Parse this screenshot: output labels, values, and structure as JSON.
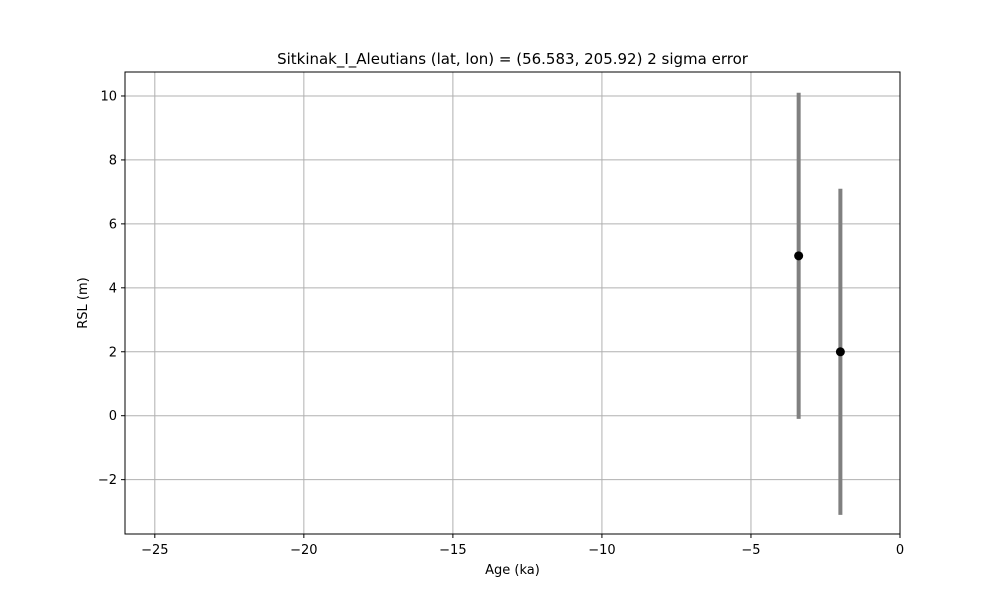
{
  "chart_data": {
    "type": "scatter",
    "title": "Sitkinak_I_Aleutians (lat, lon) = (56.583, 205.92)  2 sigma error",
    "xlabel": "Age (ka)",
    "ylabel": "RSL (m)",
    "xlim": [
      -26,
      0
    ],
    "ylim": [
      -3.7,
      10.75
    ],
    "grid": true,
    "x_ticks": [
      -25,
      -20,
      -15,
      -10,
      -5,
      0
    ],
    "x_tick_labels": [
      "−25",
      "−20",
      "−15",
      "−10",
      "−5",
      "0"
    ],
    "y_ticks": [
      -2,
      0,
      2,
      4,
      6,
      8,
      10
    ],
    "y_tick_labels": [
      "−2",
      "0",
      "2",
      "4",
      "6",
      "8",
      "10"
    ],
    "points": [
      {
        "x": -3.4,
        "y": 5.0,
        "err_low": -0.1,
        "err_high": 10.1
      },
      {
        "x": -2.0,
        "y": 2.0,
        "err_low": -3.1,
        "err_high": 7.1
      }
    ],
    "colors": {
      "marker": "#000000",
      "errorbar": "#808080",
      "grid": "#b0b0b0",
      "axes": "#000000"
    }
  }
}
